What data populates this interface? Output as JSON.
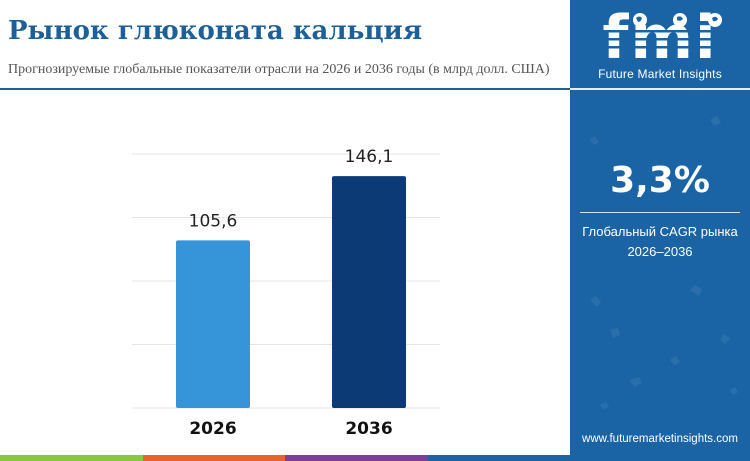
{
  "header": {
    "title": "Рынок глюконата кальция",
    "subtitle": "Прогнозируемые глобальные показатели отрасли на 2026 и 2036 годы (в млрд долл. США)"
  },
  "chart_data": {
    "type": "bar",
    "title": "",
    "xlabel": "",
    "ylabel": "",
    "categories": [
      "2026",
      "2036"
    ],
    "values": [
      105.6,
      146.1
    ],
    "value_labels": [
      "105,6",
      "146,1"
    ],
    "bar_colors": [
      "#3595d8",
      "#0b3a75"
    ],
    "ylim": [
      0,
      160
    ],
    "grid": true,
    "gridlines": [
      0,
      40,
      80,
      120,
      160
    ],
    "legend": "none"
  },
  "sidebar": {
    "logo_text": "fmi",
    "logo_tagline": "Future Market Insights",
    "cagr_value": "3,3%",
    "cagr_label_line1": "Глобальный CAGR рынка",
    "cagr_label_line2": "2026–2036",
    "website": "www.futuremarketinsights.com",
    "background_color": "#1a64a6"
  },
  "colors": {
    "title": "#1c5f99",
    "stripe": [
      "#8cc63f",
      "#e8632b",
      "#7b3f98",
      "#1a64a6"
    ]
  }
}
